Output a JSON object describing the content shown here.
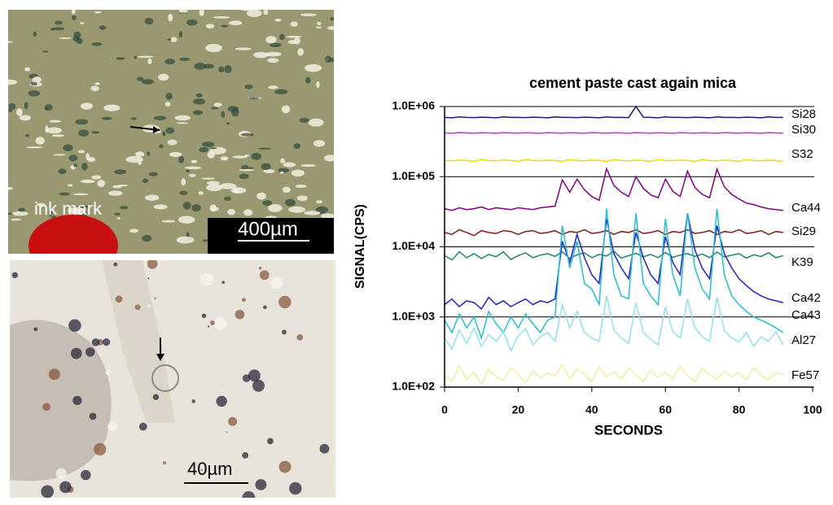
{
  "micrographs": {
    "top": {
      "annotation": "ink mark",
      "scale_bar": "400µm"
    },
    "bottom": {
      "scale_bar": "40µm"
    }
  },
  "chart_data": {
    "type": "line",
    "title": "cement paste cast again mica",
    "x_label": "SECONDS",
    "y_label": "SIGNAL(CPS)",
    "log_scale": true,
    "grid": true,
    "xlim": [
      0,
      100
    ],
    "xticks": [
      0,
      20,
      40,
      60,
      80,
      100
    ],
    "ylim": [
      100,
      1000000
    ],
    "yticks": [
      {
        "value": 100,
        "label": "1.0E+02"
      },
      {
        "value": 1000,
        "label": "1.0E+03"
      },
      {
        "value": 10000,
        "label": "1.0E+04"
      },
      {
        "value": 100000,
        "label": "1.0E+05"
      },
      {
        "value": 1000000,
        "label": "1.0E+06"
      }
    ],
    "x": [
      0,
      2,
      4,
      6,
      8,
      10,
      12,
      14,
      16,
      18,
      20,
      22,
      24,
      26,
      28,
      30,
      32,
      34,
      36,
      38,
      40,
      42,
      44,
      46,
      48,
      50,
      52,
      54,
      56,
      58,
      60,
      62,
      64,
      66,
      68,
      70,
      72,
      74,
      76,
      78,
      80,
      82,
      84,
      86,
      88,
      90,
      92
    ],
    "series": [
      {
        "name": "Si28",
        "color": "#1a1a7a",
        "values": [
          700000,
          690000,
          710000,
          700000,
          695000,
          705000,
          700000,
          690000,
          710000,
          700000,
          700000,
          695000,
          705000,
          700000,
          690000,
          710000,
          700000,
          700000,
          695000,
          705000,
          700000,
          690000,
          710000,
          700000,
          700000,
          695000,
          1000000,
          705000,
          700000,
          690000,
          710000,
          700000,
          700000,
          695000,
          705000,
          700000,
          690000,
          710000,
          700000,
          700000,
          695000,
          705000,
          700000,
          690000,
          710000,
          700000,
          700000
        ]
      },
      {
        "name": "Si30",
        "color": "#e020e0",
        "values": [
          420000,
          415000,
          425000,
          420000,
          418000,
          422000,
          420000,
          415000,
          425000,
          420000,
          418000,
          422000,
          420000,
          415000,
          425000,
          420000,
          418000,
          422000,
          420000,
          415000,
          425000,
          420000,
          418000,
          422000,
          420000,
          415000,
          425000,
          420000,
          418000,
          422000,
          420000,
          415000,
          425000,
          420000,
          418000,
          422000,
          420000,
          415000,
          425000,
          420000,
          418000,
          422000,
          420000,
          415000,
          425000,
          420000,
          418000
        ]
      },
      {
        "name": "S32",
        "color": "#e8e000",
        "values": [
          170000,
          168000,
          172000,
          170000,
          165000,
          175000,
          170000,
          168000,
          172000,
          170000,
          165000,
          175000,
          170000,
          168000,
          172000,
          170000,
          165000,
          175000,
          170000,
          168000,
          172000,
          170000,
          165000,
          175000,
          170000,
          168000,
          172000,
          170000,
          165000,
          175000,
          170000,
          168000,
          172000,
          170000,
          165000,
          175000,
          170000,
          168000,
          172000,
          170000,
          165000,
          175000,
          170000,
          168000,
          172000,
          170000,
          165000
        ]
      },
      {
        "name": "Ca44",
        "color": "#800080",
        "values": [
          35000,
          33000,
          36000,
          34000,
          35000,
          37000,
          34000,
          36000,
          35000,
          34000,
          36000,
          35000,
          34000,
          36000,
          37000,
          38000,
          90000,
          60000,
          92000,
          65000,
          52000,
          46000,
          130000,
          75000,
          60000,
          52000,
          100000,
          68000,
          55000,
          50000,
          92000,
          62000,
          52000,
          120000,
          70000,
          56000,
          50000,
          128000,
          72000,
          56000,
          48000,
          42000,
          40000,
          37000,
          35000,
          34000,
          33000
        ]
      },
      {
        "name": "Si29",
        "color": "#8b1a1a",
        "values": [
          16000,
          15000,
          17500,
          16000,
          14500,
          17000,
          16000,
          15500,
          17000,
          16500,
          15000,
          16500,
          17000,
          15500,
          16000,
          17000,
          15000,
          16500,
          16000,
          17500,
          15500,
          16000,
          17000,
          15000,
          16500,
          16000,
          17500,
          15500,
          16000,
          17000,
          15000,
          16500,
          16000,
          17500,
          15500,
          16000,
          17000,
          15000,
          16500,
          16000,
          17500,
          15500,
          16000,
          17000,
          15000,
          16500,
          16000
        ]
      },
      {
        "name": "K39",
        "color": "#208070",
        "values": [
          7500,
          6500,
          8500,
          7000,
          8000,
          6800,
          7800,
          7200,
          8500,
          6600,
          7500,
          8200,
          7000,
          7600,
          8000,
          7300,
          8500,
          6800,
          7700,
          8200,
          7000,
          7800,
          7400,
          8600,
          6900,
          7500,
          8100,
          7200,
          7800,
          7000,
          8300,
          7100,
          7600,
          8000,
          7300,
          7900,
          7000,
          8400,
          7200,
          7600,
          8000,
          6900,
          7700,
          7300,
          8200,
          7000,
          7500
        ]
      },
      {
        "name": "Ca42",
        "color": "#2020c0",
        "values": [
          1500,
          1800,
          1400,
          1700,
          1600,
          1300,
          1900,
          1500,
          1700,
          1400,
          1600,
          1800,
          1500,
          1700,
          1600,
          1800,
          12000,
          6000,
          15000,
          7000,
          4000,
          3000,
          25000,
          8000,
          5000,
          3500,
          16000,
          7000,
          4000,
          3000,
          14000,
          6000,
          4000,
          30000,
          9000,
          5000,
          3500,
          20000,
          8000,
          5000,
          3500,
          2800,
          2300,
          2000,
          1800,
          1700,
          1600
        ]
      },
      {
        "name": "Ca43",
        "color": "#20c0d0",
        "values": [
          900,
          600,
          1100,
          700,
          1000,
          500,
          1200,
          800,
          600,
          1000,
          700,
          1100,
          800,
          600,
          900,
          1000,
          20000,
          5000,
          12000,
          3000,
          2500,
          1500,
          35000,
          4000,
          2000,
          1800,
          30000,
          3000,
          2000,
          1500,
          25000,
          4000,
          2000,
          30000,
          5000,
          2500,
          1800,
          35000,
          4000,
          2000,
          1500,
          1200,
          1000,
          900,
          800,
          700,
          600
        ]
      },
      {
        "name": "Al27",
        "color": "#90e0f0",
        "values": [
          500,
          350,
          650,
          420,
          700,
          380,
          560,
          450,
          620,
          330,
          540,
          680,
          400,
          520,
          600,
          450,
          1500,
          700,
          1200,
          600,
          500,
          450,
          2000,
          650,
          500,
          420,
          1600,
          600,
          480,
          400,
          1400,
          620,
          500,
          1800,
          700,
          520,
          450,
          1900,
          640,
          500,
          440,
          600,
          380,
          520,
          450,
          620,
          400
        ]
      },
      {
        "name": "Fe57",
        "color": "#f0eca0",
        "values": [
          150,
          120,
          200,
          130,
          160,
          110,
          180,
          140,
          125,
          190,
          150,
          115,
          170,
          135,
          160,
          145,
          210,
          130,
          180,
          150,
          120,
          200,
          140,
          165,
          130,
          190,
          150,
          120,
          175,
          140,
          160,
          130,
          200,
          145,
          120,
          185,
          150,
          130,
          170,
          140,
          160,
          125,
          190,
          145,
          130,
          160,
          150
        ]
      }
    ]
  }
}
